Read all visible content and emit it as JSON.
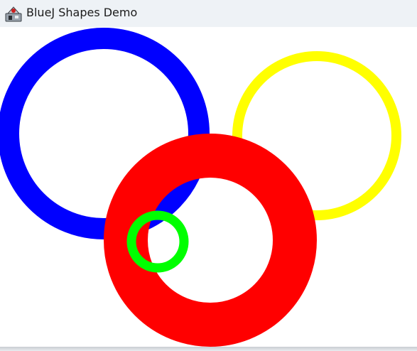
{
  "window": {
    "title": "BlueJ Shapes Demo",
    "icon": "bluej-app-icon"
  },
  "shapes": [
    {
      "kind": "circle",
      "name": "blue-circle",
      "color": "#0000ff"
    },
    {
      "kind": "circle",
      "name": "yellow-circle",
      "color": "#ffff00"
    },
    {
      "kind": "circle",
      "name": "red-circle",
      "color": "#ff0000"
    },
    {
      "kind": "circle",
      "name": "green-circle",
      "color": "#00ff00"
    }
  ]
}
